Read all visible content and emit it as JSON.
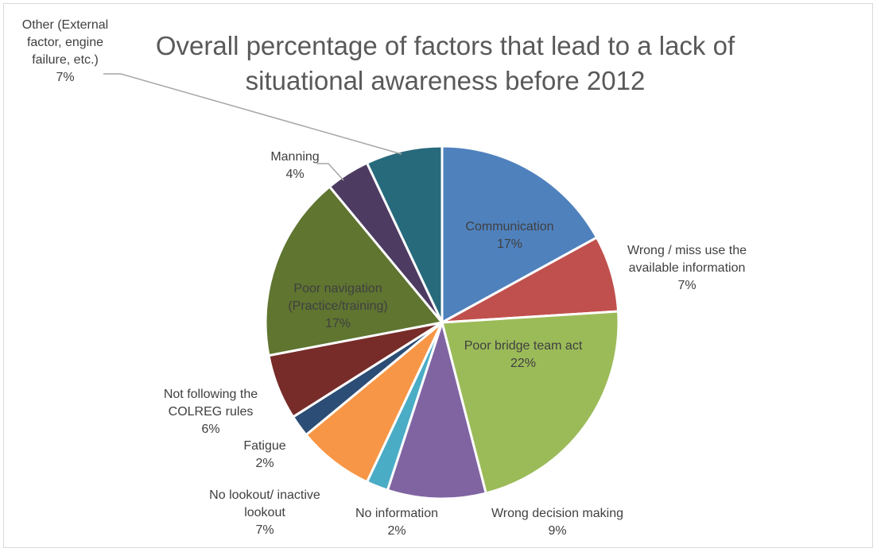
{
  "chart_data": {
    "type": "pie",
    "title": "Overall percentage of factors that lead to a lack of situational awareness before 2012",
    "title_lines": [
      "Overall percentage of factors that lead to a lack of",
      "situational awareness before 2012"
    ],
    "slices": [
      {
        "label": "Communication",
        "label_lines": [
          "Communication"
        ],
        "value": 17,
        "percent_label": "17%",
        "color": "#4f81bd"
      },
      {
        "label": "Wrong / miss use the available information",
        "label_lines": [
          "Wrong / miss use the",
          "available information"
        ],
        "value": 7,
        "percent_label": "7%",
        "color": "#c0504d"
      },
      {
        "label": "Poor bridge team act",
        "label_lines": [
          "Poor bridge team act"
        ],
        "value": 22,
        "percent_label": "22%",
        "color": "#9bbb59"
      },
      {
        "label": "Wrong decision making",
        "label_lines": [
          "Wrong decision making"
        ],
        "value": 9,
        "percent_label": "9%",
        "color": "#8064a2"
      },
      {
        "label": "No information",
        "label_lines": [
          "No information"
        ],
        "value": 2,
        "percent_label": "2%",
        "color": "#4bacc6"
      },
      {
        "label": "No lookout/ inactive lookout",
        "label_lines": [
          "No lookout/ inactive",
          "lookout"
        ],
        "value": 7,
        "percent_label": "7%",
        "color": "#f79646"
      },
      {
        "label": "Fatigue",
        "label_lines": [
          "Fatigue"
        ],
        "value": 2,
        "percent_label": "2%",
        "color": "#2c4d75"
      },
      {
        "label": "Not following the COLREG rules",
        "label_lines": [
          "Not following the",
          "COLREG rules"
        ],
        "value": 6,
        "percent_label": "6%",
        "color": "#772c2a"
      },
      {
        "label": "Poor navigation (Practice/training)",
        "label_lines": [
          "Poor navigation",
          "(Practice/training)"
        ],
        "value": 17,
        "percent_label": "17%",
        "color": "#5f7530"
      },
      {
        "label": "Manning",
        "label_lines": [
          "Manning"
        ],
        "value": 4,
        "percent_label": "4%",
        "color": "#4d3b62"
      },
      {
        "label": "Other (External factor, engine failure, etc.)",
        "label_lines": [
          "Other (External",
          "factor, engine",
          "failure, etc.)"
        ],
        "value": 7,
        "percent_label": "7%",
        "color": "#276a7c"
      }
    ]
  }
}
